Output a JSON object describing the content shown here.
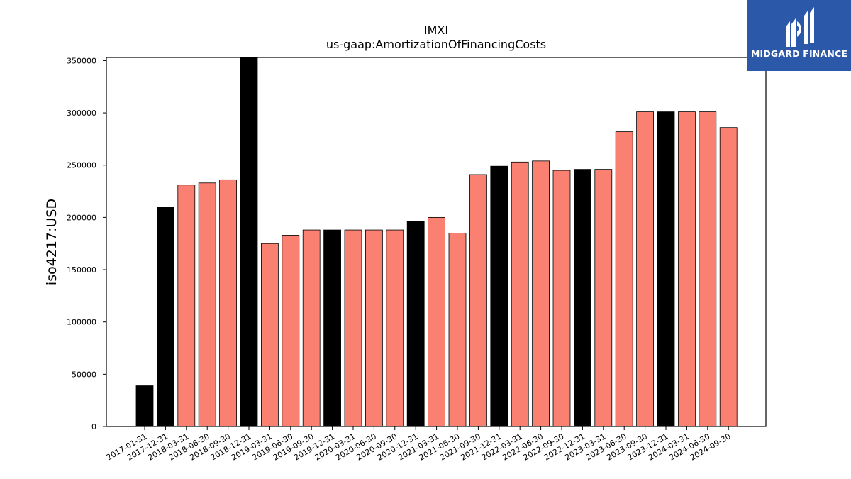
{
  "chart_data": {
    "type": "bar",
    "title": "IMXI",
    "subtitle": "us-gaap:AmortizationOfFinancingCosts",
    "ylabel": "iso4217:USD",
    "xlabel": "",
    "ylim": [
      0,
      353000
    ],
    "yticks": [
      0,
      50000,
      100000,
      150000,
      200000,
      250000,
      300000,
      350000
    ],
    "grid": false,
    "categories": [
      "2017-01-31",
      "2017-12-31",
      "2018-03-31",
      "2018-06-30",
      "2018-09-30",
      "2018-12-31",
      "2019-03-31",
      "2019-06-30",
      "2019-09-30",
      "2019-12-31",
      "2020-03-31",
      "2020-06-30",
      "2020-09-30",
      "2020-12-31",
      "2021-03-31",
      "2021-06-30",
      "2021-09-30",
      "2021-12-31",
      "2022-03-31",
      "2022-06-30",
      "2022-09-30",
      "2022-12-31",
      "2023-03-31",
      "2023-06-30",
      "2023-09-30",
      "2023-12-31",
      "2024-03-31",
      "2024-06-30",
      "2024-09-30"
    ],
    "values": [
      39000,
      210000,
      231000,
      233000,
      236000,
      360000,
      175000,
      183000,
      188000,
      188000,
      188000,
      188000,
      188000,
      196000,
      200000,
      185000,
      241000,
      249000,
      253000,
      254000,
      245000,
      246000,
      246000,
      282000,
      301000,
      301000,
      301000,
      301000,
      286000
    ],
    "bar_colors": [
      "#000000",
      "#000000",
      "#fa8072",
      "#fa8072",
      "#fa8072",
      "#000000",
      "#fa8072",
      "#fa8072",
      "#fa8072",
      "#000000",
      "#fa8072",
      "#fa8072",
      "#fa8072",
      "#000000",
      "#fa8072",
      "#fa8072",
      "#fa8072",
      "#000000",
      "#fa8072",
      "#fa8072",
      "#fa8072",
      "#000000",
      "#fa8072",
      "#fa8072",
      "#fa8072",
      "#000000",
      "#fa8072",
      "#fa8072",
      "#fa8072"
    ]
  },
  "logo": {
    "name": "MIDGARD FINANCE",
    "background": "#2b58a8"
  }
}
